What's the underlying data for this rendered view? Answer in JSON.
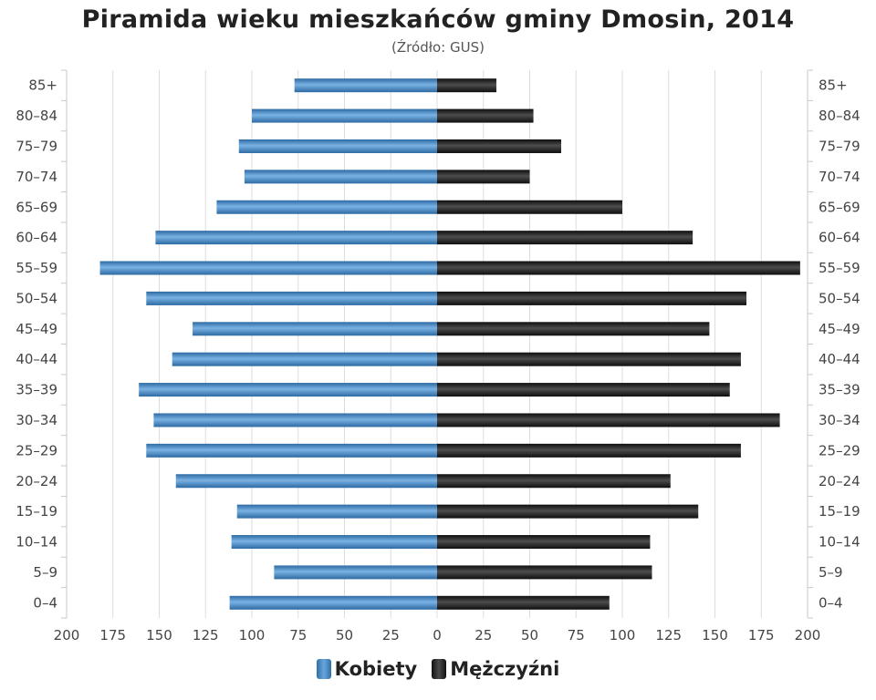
{
  "chart_data": {
    "type": "bar",
    "orientation": "horizontal-population-pyramid",
    "title": "Piramida wieku mieszkańców gminy Dmosin, 2014",
    "subtitle": "(Źródło: GUS)",
    "categories": [
      "85+",
      "80–84",
      "75–79",
      "70–74",
      "65–69",
      "60–64",
      "55–59",
      "50–54",
      "45–49",
      "40–44",
      "35–39",
      "30–34",
      "25–29",
      "20–24",
      "15–19",
      "10–14",
      "5–9",
      "0–4"
    ],
    "series": [
      {
        "name": "Kobiety",
        "color": "#4a8ccc",
        "values": [
          77,
          100,
          107,
          104,
          119,
          152,
          182,
          157,
          132,
          143,
          161,
          153,
          157,
          141,
          108,
          111,
          88,
          112
        ]
      },
      {
        "name": "Mężczyźni",
        "color": "#222222",
        "values": [
          32,
          52,
          67,
          50,
          100,
          138,
          196,
          167,
          147,
          164,
          158,
          185,
          164,
          126,
          141,
          115,
          116,
          93
        ]
      }
    ],
    "xlim": [
      -200,
      200
    ],
    "x_ticks": [
      "200",
      "175",
      "150",
      "125",
      "100",
      "75",
      "50",
      "25",
      "0",
      "25",
      "50",
      "75",
      "100",
      "125",
      "150",
      "175",
      "200"
    ],
    "grid": true,
    "legend_position": "bottom"
  }
}
